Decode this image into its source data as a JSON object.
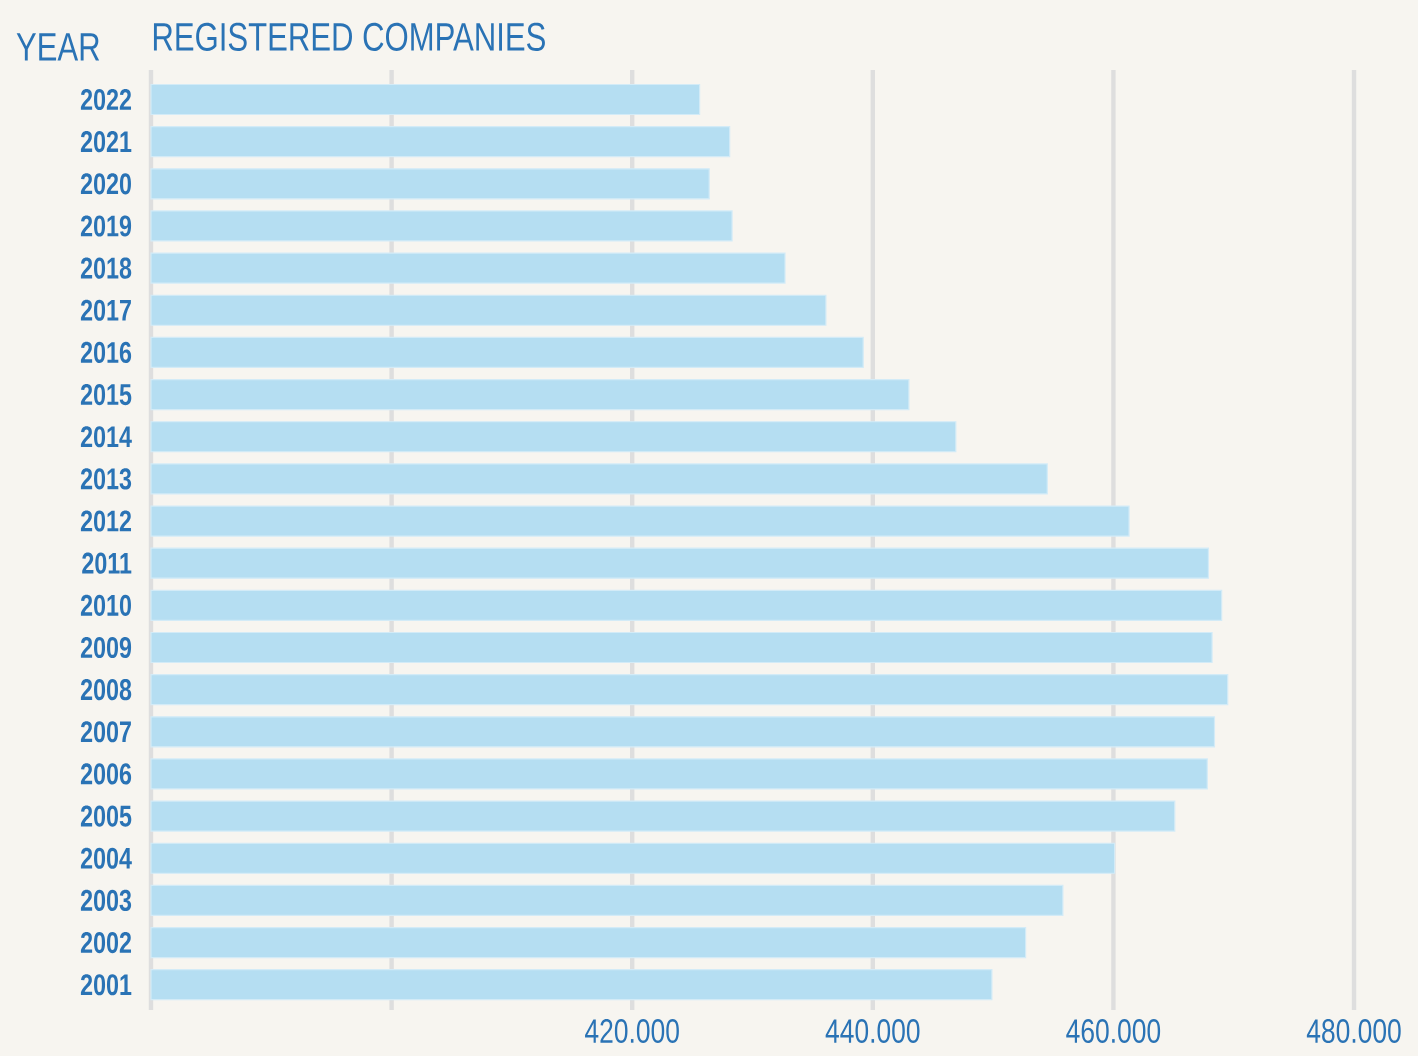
{
  "chart_data": {
    "type": "bar",
    "orientation": "horizontal",
    "title": "REGISTERED COMPANIES",
    "ylabel": "YEAR",
    "categories": [
      "2022",
      "2021",
      "2020",
      "2019",
      "2018",
      "2017",
      "2016",
      "2015",
      "2014",
      "2013",
      "2012",
      "2011",
      "2010",
      "2009",
      "2008",
      "2007",
      "2006",
      "2005",
      "2004",
      "2003",
      "2002",
      "2001"
    ],
    "values": [
      425600,
      428100,
      426400,
      428300,
      432700,
      436100,
      439200,
      443000,
      446900,
      454500,
      461300,
      467900,
      469000,
      468200,
      469500,
      468400,
      467800,
      465100,
      460100,
      455800,
      452700,
      449900
    ],
    "color": "#b5def2",
    "xlim": [
      380000,
      480000
    ],
    "xticks": [
      {
        "value": 380000,
        "label": null
      },
      {
        "value": 400000,
        "label": null
      },
      {
        "value": 420000,
        "label": "420.000"
      },
      {
        "value": 440000,
        "label": "440.000"
      },
      {
        "value": 460000,
        "label": "460.000"
      },
      {
        "value": 480000,
        "label": "480.000"
      }
    ],
    "grid": "x"
  }
}
